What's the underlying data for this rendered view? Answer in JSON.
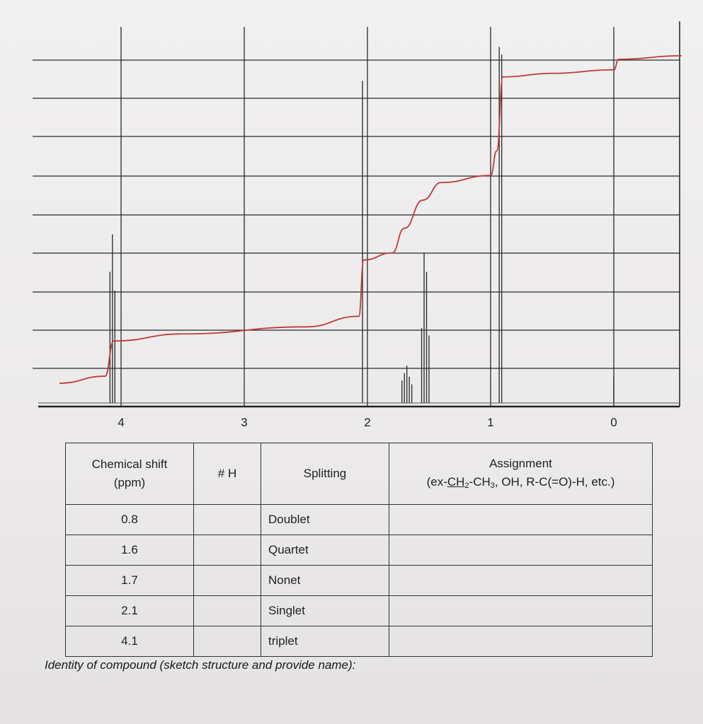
{
  "chart_data": {
    "type": "line",
    "xlim": [
      4.5,
      -0.55
    ],
    "x_ticks": [
      "4",
      "3",
      "2",
      "1",
      "0"
    ],
    "grid": true,
    "integration_curve": [
      {
        "x": 4.5,
        "y": 0.0
      },
      {
        "x": 4.13,
        "y": 0.02
      },
      {
        "x": 4.06,
        "y": 0.12
      },
      {
        "x": 3.5,
        "y": 0.14
      },
      {
        "x": 2.5,
        "y": 0.16
      },
      {
        "x": 2.07,
        "y": 0.19
      },
      {
        "x": 2.03,
        "y": 0.35
      },
      {
        "x": 1.8,
        "y": 0.37
      },
      {
        "x": 1.7,
        "y": 0.44
      },
      {
        "x": 1.55,
        "y": 0.52
      },
      {
        "x": 1.4,
        "y": 0.57
      },
      {
        "x": 1.0,
        "y": 0.59
      },
      {
        "x": 0.95,
        "y": 0.66
      },
      {
        "x": 0.9,
        "y": 0.87
      },
      {
        "x": 0.5,
        "y": 0.88
      },
      {
        "x": 0.0,
        "y": 0.89
      },
      {
        "x": -0.04,
        "y": 0.92
      },
      {
        "x": -0.55,
        "y": 0.93
      }
    ],
    "peaks": [
      {
        "x": 4.09,
        "height": 0.35
      },
      {
        "x": 4.07,
        "height": 0.45
      },
      {
        "x": 4.05,
        "height": 0.3
      },
      {
        "x": 2.04,
        "height": 0.86
      },
      {
        "x": 1.72,
        "height": 0.06
      },
      {
        "x": 1.7,
        "height": 0.08
      },
      {
        "x": 1.68,
        "height": 0.1
      },
      {
        "x": 1.66,
        "height": 0.07
      },
      {
        "x": 1.64,
        "height": 0.05
      },
      {
        "x": 1.56,
        "height": 0.2
      },
      {
        "x": 1.54,
        "height": 0.4
      },
      {
        "x": 1.52,
        "height": 0.35
      },
      {
        "x": 1.5,
        "height": 0.18
      },
      {
        "x": 0.93,
        "height": 0.95
      },
      {
        "x": 0.91,
        "height": 0.93
      },
      {
        "x": 0.0,
        "height": 0.07
      }
    ]
  },
  "table": {
    "headers": {
      "shift_line1": "Chemical shift",
      "shift_line2": "(ppm)",
      "nh": "# H",
      "splitting": "Splitting",
      "assign_line1": "Assignment",
      "assign_pre": "(ex-",
      "assign_ch2": "CH",
      "assign_sub2": "2",
      "assign_mid": "-CH",
      "assign_sub3": "3",
      "assign_post": ", OH, R-C(=O)-H, etc.)"
    },
    "rows": [
      {
        "shift": "0.8",
        "nh": "",
        "splitting": "Doublet",
        "assignment": ""
      },
      {
        "shift": "1.6",
        "nh": "",
        "splitting": "Quartet",
        "assignment": ""
      },
      {
        "shift": "1.7",
        "nh": "",
        "splitting": "Nonet",
        "assignment": ""
      },
      {
        "shift": "2.1",
        "nh": "",
        "splitting": "Singlet",
        "assignment": ""
      },
      {
        "shift": "4.1",
        "nh": "",
        "splitting": "triplet",
        "assignment": ""
      }
    ]
  },
  "identity_prompt": "Identity of compound (sketch structure and provide name):"
}
